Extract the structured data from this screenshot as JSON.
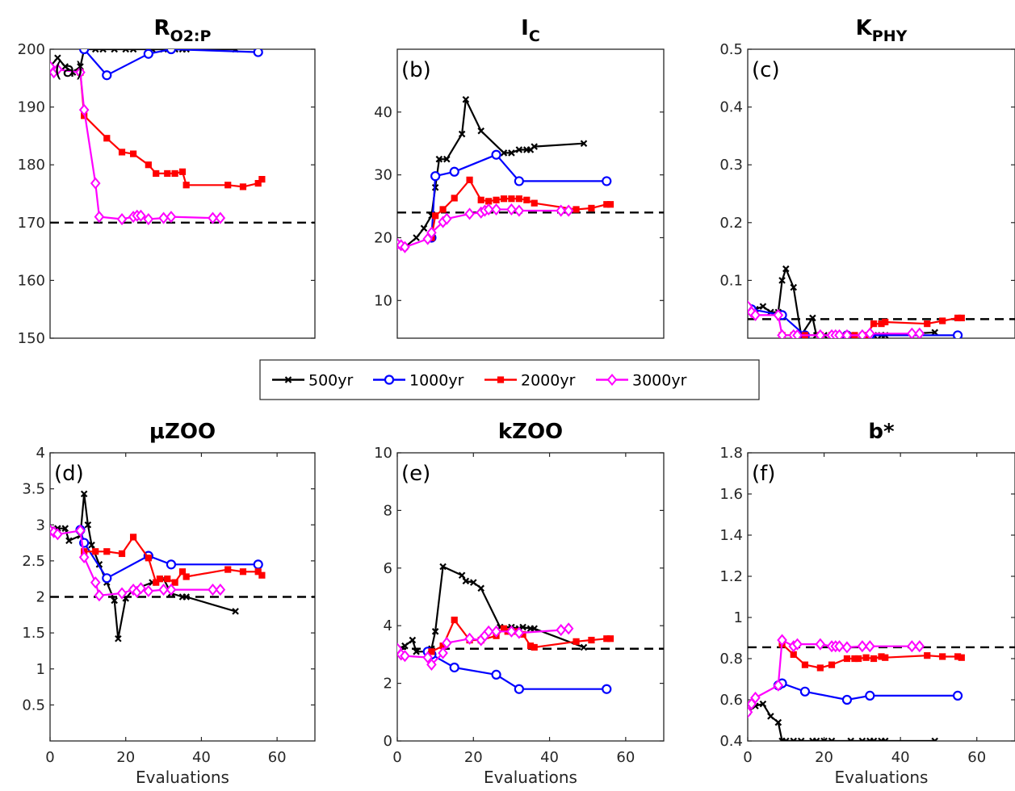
{
  "series_styles": {
    "500yr": {
      "color": "#000000",
      "marker": "x"
    },
    "1000yr": {
      "color": "#0000ff",
      "marker": "circle"
    },
    "2000yr": {
      "color": "#ff0000",
      "marker": "square"
    },
    "3000yr": {
      "color": "#ff00ff",
      "marker": "diamond"
    }
  },
  "legend": {
    "placement": "center",
    "entries": [
      "500yr",
      "1000yr",
      "2000yr",
      "3000yr"
    ]
  },
  "chart_data": [
    {
      "type": "line",
      "title": "R",
      "title_sub": "O2:P",
      "panel_label": "(a)",
      "xlabel": "",
      "xlim": [
        0,
        70
      ],
      "ylim": [
        150,
        200
      ],
      "xticks": [],
      "yticks": [
        150,
        160,
        170,
        180,
        190,
        200
      ],
      "ytick_labels": [
        "150",
        "160",
        "170",
        "180",
        "190",
        "200"
      ],
      "reference_line": 170,
      "series": [
        {
          "name": "500yr",
          "x": [
            0,
            2,
            4,
            6,
            8,
            9,
            12,
            14,
            17,
            20,
            22,
            27,
            30,
            32,
            33,
            35,
            36,
            49
          ],
          "y": [
            197,
            198.5,
            197,
            196,
            197,
            200,
            200,
            200,
            200,
            200,
            200,
            200,
            200,
            200,
            200,
            200,
            200,
            200
          ]
        },
        {
          "name": "1000yr",
          "x": [
            9,
            15,
            26,
            32,
            55
          ],
          "y": [
            200,
            195.5,
            199.2,
            200,
            199.5
          ]
        },
        {
          "name": "2000yr",
          "x": [
            8,
            9,
            15,
            19,
            22,
            26,
            28,
            31,
            33,
            35,
            36,
            47,
            51,
            55,
            56
          ],
          "y": [
            196,
            188.5,
            184.6,
            182.2,
            181.9,
            180,
            178.5,
            178.5,
            178.5,
            178.8,
            176.5,
            176.5,
            176.2,
            176.8,
            177.5
          ]
        },
        {
          "name": "3000yr",
          "x": [
            0,
            1,
            2,
            8,
            9,
            12,
            13,
            19,
            22,
            23,
            24,
            26,
            30,
            32,
            43,
            45
          ],
          "y": [
            197,
            196,
            196.5,
            196,
            189.5,
            176.8,
            171,
            170.6,
            171,
            171.2,
            171.2,
            170.6,
            170.8,
            171,
            170.8,
            170.8
          ]
        }
      ]
    },
    {
      "type": "line",
      "title": "I",
      "title_sub": "C",
      "panel_label": "(b)",
      "xlabel": "",
      "xlim": [
        0,
        70
      ],
      "ylim": [
        4,
        50
      ],
      "xticks": [],
      "yticks": [
        10,
        20,
        30,
        40
      ],
      "ytick_labels": [
        "10",
        "20",
        "30",
        "40"
      ],
      "reference_line": 24,
      "series": [
        {
          "name": "500yr",
          "x": [
            0,
            2,
            5,
            7,
            9,
            10,
            11,
            13,
            17,
            18,
            22,
            28,
            30,
            32,
            34,
            35,
            36,
            49
          ],
          "y": [
            19,
            18.5,
            20,
            21.5,
            23.5,
            28,
            32.5,
            32.5,
            36.5,
            42,
            37,
            33.5,
            33.5,
            34,
            34,
            34,
            34.5,
            35
          ]
        },
        {
          "name": "1000yr",
          "x": [
            9,
            10,
            15,
            26,
            32,
            55
          ],
          "y": [
            20,
            29.8,
            30.5,
            33.2,
            29,
            29
          ]
        },
        {
          "name": "2000yr",
          "x": [
            9,
            10,
            12,
            15,
            19,
            22,
            24,
            26,
            28,
            30,
            32,
            34,
            36,
            47,
            51,
            55,
            56
          ],
          "y": [
            20,
            23.5,
            24.5,
            26.3,
            29.2,
            26,
            25.8,
            26,
            26.2,
            26.2,
            26.2,
            26,
            25.5,
            24.5,
            24.7,
            25.3,
            25.3
          ]
        },
        {
          "name": "3000yr",
          "x": [
            0,
            1,
            2,
            8,
            9,
            12,
            13,
            19,
            22,
            23,
            24,
            26,
            30,
            32,
            43,
            45
          ],
          "y": [
            19,
            18.8,
            18.5,
            19.8,
            20.8,
            22.5,
            23,
            23.8,
            24,
            24.3,
            24.5,
            24.5,
            24.5,
            24.3,
            24.3,
            24.3
          ]
        }
      ]
    },
    {
      "type": "line",
      "title": "K",
      "title_sub": "PHY",
      "panel_label": "(c)",
      "xlabel": "",
      "xlim": [
        0,
        70
      ],
      "ylim": [
        0,
        0.5
      ],
      "xticks": [],
      "yticks": [
        0.1,
        0.2,
        0.3,
        0.4,
        0.5
      ],
      "ytick_labels": [
        "0.1",
        "0.2",
        "0.3",
        "0.4",
        "0.5"
      ],
      "reference_line": 0.033,
      "series": [
        {
          "name": "500yr",
          "x": [
            0,
            2,
            4,
            6,
            8,
            9,
            10,
            12,
            14,
            17,
            18,
            20,
            22,
            27,
            30,
            32,
            33,
            35,
            36,
            49
          ],
          "y": [
            0.055,
            0.05,
            0.055,
            0.045,
            0.045,
            0.1,
            0.12,
            0.088,
            0.005,
            0.035,
            0.005,
            0.005,
            0.005,
            0.005,
            0.005,
            0.005,
            0.005,
            0.005,
            0.005,
            0.01
          ]
        },
        {
          "name": "1000yr",
          "x": [
            1,
            9,
            15,
            26,
            32,
            55
          ],
          "y": [
            0.05,
            0.04,
            0.005,
            0.005,
            0.005,
            0.005
          ]
        },
        {
          "name": "2000yr",
          "x": [
            9,
            12,
            15,
            19,
            22,
            26,
            28,
            31,
            33,
            35,
            36,
            47,
            51,
            55,
            56
          ],
          "y": [
            0.005,
            0.005,
            0.005,
            0.005,
            0.005,
            0.005,
            0.005,
            0.005,
            0.025,
            0.025,
            0.028,
            0.025,
            0.03,
            0.035,
            0.035
          ]
        },
        {
          "name": "3000yr",
          "x": [
            0,
            1,
            2,
            8,
            9,
            12,
            13,
            19,
            22,
            23,
            24,
            26,
            30,
            32,
            43,
            45
          ],
          "y": [
            0.055,
            0.045,
            0.04,
            0.04,
            0.005,
            0.005,
            0.005,
            0.005,
            0.005,
            0.005,
            0.005,
            0.005,
            0.005,
            0.008,
            0.008,
            0.008
          ]
        }
      ]
    },
    {
      "type": "line",
      "title": "μZOO",
      "title_sub": "",
      "panel_label": "(d)",
      "xlabel": "Evaluations",
      "xlim": [
        0,
        70
      ],
      "ylim": [
        0,
        4
      ],
      "xticks": [
        0,
        20,
        40,
        60
      ],
      "xtick_labels": [
        "0",
        "20",
        "40",
        "60"
      ],
      "yticks": [
        0.5,
        1,
        1.5,
        2,
        2.5,
        3,
        3.5,
        4
      ],
      "ytick_labels": [
        "0.5",
        "1",
        "1.5",
        "2",
        "2.5",
        "3",
        "3.5",
        "4"
      ],
      "reference_line": 2,
      "series": [
        {
          "name": "500yr",
          "x": [
            0,
            2,
            4,
            5,
            8,
            9,
            10,
            11,
            13,
            15,
            17,
            18,
            20,
            22,
            27,
            30,
            32,
            35,
            36,
            49
          ],
          "y": [
            2.93,
            2.95,
            2.95,
            2.78,
            2.85,
            3.43,
            3.0,
            2.72,
            2.45,
            2.2,
            1.95,
            1.42,
            1.98,
            2.1,
            2.2,
            2.25,
            2.05,
            2.0,
            2.0,
            1.8
          ]
        },
        {
          "name": "1000yr",
          "x": [
            8,
            9,
            15,
            26,
            32,
            55
          ],
          "y": [
            2.93,
            2.75,
            2.26,
            2.57,
            2.45,
            2.45
          ]
        },
        {
          "name": "2000yr",
          "x": [
            9,
            12,
            15,
            19,
            22,
            26,
            28,
            29,
            31,
            33,
            35,
            36,
            47,
            51,
            55,
            56
          ],
          "y": [
            2.63,
            2.63,
            2.63,
            2.6,
            2.83,
            2.54,
            2.2,
            2.25,
            2.25,
            2.2,
            2.35,
            2.28,
            2.38,
            2.35,
            2.35,
            2.3
          ]
        },
        {
          "name": "3000yr",
          "x": [
            0,
            1,
            2,
            8,
            9,
            12,
            13,
            19,
            22,
            23,
            24,
            26,
            30,
            32,
            43,
            45
          ],
          "y": [
            2.92,
            2.9,
            2.87,
            2.92,
            2.55,
            2.2,
            2.02,
            2.05,
            2.1,
            2.07,
            2.12,
            2.08,
            2.1,
            2.1,
            2.1,
            2.1
          ]
        }
      ]
    },
    {
      "type": "line",
      "title": "kZOO",
      "title_sub": "",
      "panel_label": "(e)",
      "xlabel": "Evaluations",
      "xlim": [
        0,
        70
      ],
      "ylim": [
        0,
        10
      ],
      "xticks": [
        0,
        20,
        40,
        60
      ],
      "xtick_labels": [
        "0",
        "20",
        "40",
        "60"
      ],
      "yticks": [
        0,
        2,
        4,
        6,
        8,
        10
      ],
      "ytick_labels": [
        "0",
        "2",
        "4",
        "6",
        "8",
        "10"
      ],
      "reference_line": 3.2,
      "series": [
        {
          "name": "500yr",
          "x": [
            0,
            2,
            4,
            5,
            8,
            9,
            10,
            12,
            17,
            18,
            20,
            22,
            27,
            30,
            32,
            33,
            35,
            36,
            49
          ],
          "y": [
            3.2,
            3.3,
            3.5,
            3.1,
            3.1,
            3.2,
            3.8,
            6.05,
            5.75,
            5.55,
            5.5,
            5.3,
            3.95,
            3.95,
            3.9,
            3.95,
            3.9,
            3.9,
            3.25
          ]
        },
        {
          "name": "1000yr",
          "x": [
            8,
            9,
            15,
            26,
            32,
            55
          ],
          "y": [
            3.1,
            3.0,
            2.55,
            2.3,
            1.8,
            1.8
          ]
        },
        {
          "name": "2000yr",
          "x": [
            9,
            12,
            15,
            19,
            22,
            26,
            28,
            29,
            31,
            33,
            35,
            36,
            47,
            51,
            55,
            56
          ],
          "y": [
            3.1,
            3.3,
            4.2,
            3.5,
            3.5,
            3.65,
            3.9,
            3.8,
            3.8,
            3.7,
            3.3,
            3.25,
            3.45,
            3.5,
            3.55,
            3.55
          ]
        },
        {
          "name": "3000yr",
          "x": [
            0,
            1,
            2,
            8,
            9,
            12,
            13,
            19,
            22,
            23,
            24,
            26,
            30,
            32,
            43,
            45
          ],
          "y": [
            3.2,
            3.0,
            2.95,
            2.9,
            2.65,
            3.05,
            3.4,
            3.55,
            3.5,
            3.65,
            3.8,
            3.8,
            3.8,
            3.75,
            3.85,
            3.9
          ]
        }
      ]
    },
    {
      "type": "line",
      "title": "b*",
      "title_sub": "",
      "panel_label": "(f)",
      "xlabel": "Evaluations",
      "xlim": [
        0,
        70
      ],
      "ylim": [
        0.4,
        1.8
      ],
      "xticks": [
        0,
        20,
        40,
        60
      ],
      "xtick_labels": [
        "0",
        "20",
        "40",
        "60"
      ],
      "yticks": [
        0.4,
        0.6,
        0.8,
        1,
        1.2,
        1.4,
        1.6,
        1.8
      ],
      "ytick_labels": [
        "0.4",
        "0.6",
        "0.8",
        "1",
        "1.2",
        "1.4",
        "1.6",
        "1.8"
      ],
      "reference_line": 0.855,
      "series": [
        {
          "name": "500yr",
          "x": [
            0,
            2,
            4,
            6,
            8,
            9,
            10,
            12,
            14,
            17,
            18,
            20,
            22,
            27,
            30,
            32,
            33,
            35,
            36,
            49
          ],
          "y": [
            0.54,
            0.57,
            0.58,
            0.52,
            0.49,
            0.4,
            0.4,
            0.4,
            0.4,
            0.4,
            0.4,
            0.4,
            0.4,
            0.4,
            0.4,
            0.4,
            0.4,
            0.4,
            0.4,
            0.4
          ]
        },
        {
          "name": "1000yr",
          "x": [
            8,
            9,
            15,
            26,
            32,
            55
          ],
          "y": [
            0.67,
            0.68,
            0.64,
            0.6,
            0.62,
            0.62
          ]
        },
        {
          "name": "2000yr",
          "x": [
            9,
            12,
            15,
            19,
            22,
            26,
            28,
            29,
            31,
            33,
            35,
            36,
            47,
            51,
            55,
            56
          ],
          "y": [
            0.87,
            0.82,
            0.77,
            0.755,
            0.77,
            0.8,
            0.8,
            0.8,
            0.805,
            0.8,
            0.81,
            0.805,
            0.815,
            0.81,
            0.81,
            0.805
          ]
        },
        {
          "name": "3000yr",
          "x": [
            0,
            1,
            2,
            8,
            9,
            12,
            13,
            19,
            22,
            23,
            24,
            26,
            30,
            32,
            43,
            45
          ],
          "y": [
            0.54,
            0.58,
            0.61,
            0.67,
            0.89,
            0.86,
            0.87,
            0.87,
            0.86,
            0.86,
            0.86,
            0.855,
            0.86,
            0.86,
            0.86,
            0.86
          ]
        }
      ]
    }
  ]
}
